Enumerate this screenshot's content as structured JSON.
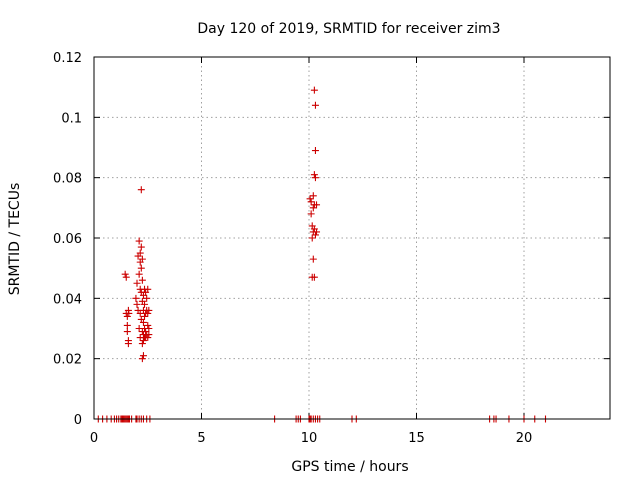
{
  "chart_data": {
    "type": "scatter",
    "title": "Day 120 of 2019, SRMTID for receiver zim3",
    "xlabel": "GPS time / hours",
    "ylabel": "SRMTID / TECUs",
    "xlim": [
      0,
      24
    ],
    "ylim": [
      0,
      0.12
    ],
    "xticks": [
      0,
      5,
      10,
      15,
      20
    ],
    "xtick_labels": [
      "0",
      "5",
      "10",
      "15",
      "20"
    ],
    "yticks": [
      0,
      0.02,
      0.04,
      0.06,
      0.08,
      0.1,
      0.12
    ],
    "ytick_labels": [
      "0",
      "0.02",
      "0.04",
      "0.06",
      "0.08",
      "0.1",
      "0.12"
    ],
    "grid": true,
    "marker": "plus",
    "color": "#cc0000",
    "series": [
      {
        "x": [
          0.2,
          0.4,
          0.6,
          0.8,
          0.95,
          1.05,
          1.15,
          1.25,
          1.3,
          1.35,
          1.4,
          1.45,
          1.5,
          1.55,
          1.6,
          1.65,
          1.75,
          1.95,
          2.0,
          2.1,
          2.2,
          2.3,
          2.45,
          2.6,
          8.4,
          9.4,
          9.5,
          9.6,
          10.0,
          10.05,
          10.1,
          10.2,
          10.3,
          10.4,
          10.5,
          12.0,
          12.2,
          18.4,
          18.6,
          18.7,
          19.3,
          20.0,
          20.5,
          21.0,
          1.45,
          1.5,
          1.5,
          1.55,
          1.55,
          1.55,
          1.6,
          1.6,
          1.6,
          1.62,
          1.95,
          2.0,
          2.0,
          2.05,
          2.05,
          2.1,
          2.1,
          2.1,
          2.15,
          2.15,
          2.15,
          2.15,
          2.15,
          2.2,
          2.2,
          2.2,
          2.2,
          2.2,
          2.25,
          2.25,
          2.25,
          2.25,
          2.25,
          2.25,
          2.3,
          2.3,
          2.3,
          2.3,
          2.3,
          2.3,
          2.35,
          2.35,
          2.35,
          2.35,
          2.35,
          2.4,
          2.4,
          2.4,
          2.4,
          2.45,
          2.45,
          2.45,
          2.5,
          2.5,
          2.5,
          2.5,
          2.55,
          2.55,
          2.55,
          10.05,
          10.1,
          10.1,
          10.15,
          10.15,
          10.15,
          10.2,
          10.2,
          10.2,
          10.2,
          10.25,
          10.25,
          10.25,
          10.25,
          10.25,
          10.3,
          10.3,
          10.3,
          10.3,
          10.35,
          10.35
        ],
        "y": [
          0,
          0,
          0,
          0,
          0,
          0,
          0,
          0,
          0,
          0,
          0,
          0,
          0,
          0,
          0,
          0,
          0,
          0,
          0,
          0,
          0,
          0,
          0,
          0,
          0,
          0,
          0,
          0,
          0,
          0,
          0,
          0,
          0,
          0,
          0,
          0,
          0,
          0,
          0,
          0,
          0,
          0,
          0,
          0,
          0.048,
          0.047,
          0.035,
          0.034,
          0.031,
          0.029,
          0.036,
          0.026,
          0.025,
          0.035,
          0.04,
          0.038,
          0.045,
          0.054,
          0.036,
          0.059,
          0.048,
          0.03,
          0.055,
          0.052,
          0.043,
          0.035,
          0.027,
          0.076,
          0.057,
          0.05,
          0.042,
          0.033,
          0.053,
          0.046,
          0.039,
          0.029,
          0.025,
          0.02,
          0.041,
          0.036,
          0.032,
          0.028,
          0.026,
          0.021,
          0.043,
          0.038,
          0.034,
          0.03,
          0.027,
          0.042,
          0.035,
          0.029,
          0.027,
          0.04,
          0.036,
          0.028,
          0.043,
          0.035,
          0.031,
          0.027,
          0.03,
          0.028,
          0.036,
          0.073,
          0.072,
          0.068,
          0.064,
          0.06,
          0.047,
          0.074,
          0.07,
          0.062,
          0.053,
          0.109,
          0.081,
          0.071,
          0.063,
          0.047,
          0.104,
          0.089,
          0.08,
          0.061,
          0.071,
          0.062
        ]
      }
    ]
  }
}
